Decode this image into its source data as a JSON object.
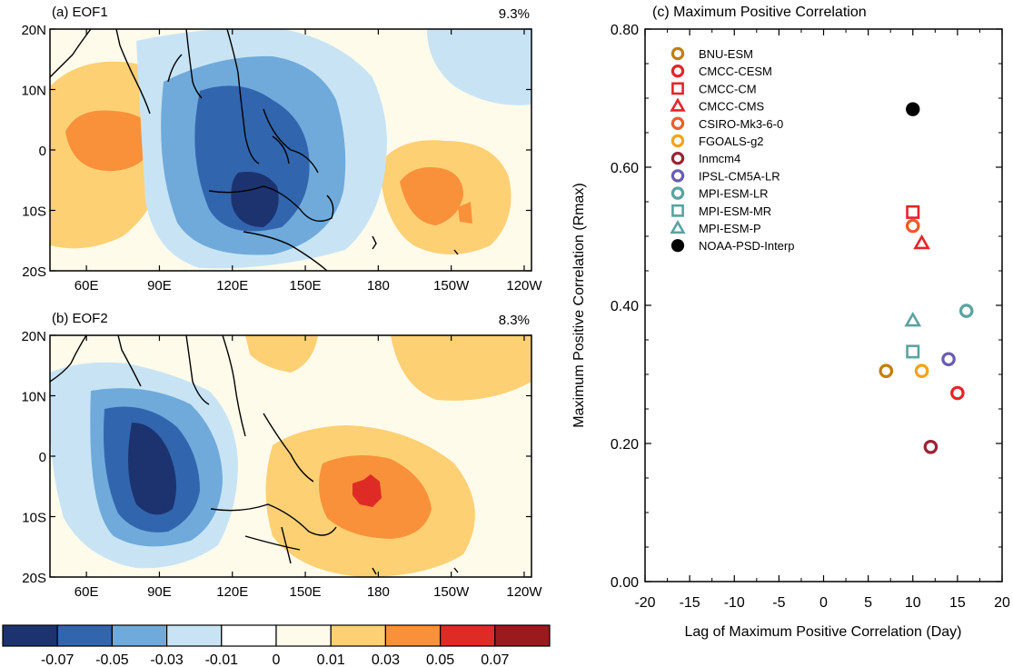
{
  "panels": {
    "a": {
      "title": "(a) EOF1",
      "variance": "9.3%"
    },
    "b": {
      "title": "(b) EOF2",
      "variance": "8.3%"
    }
  },
  "map_axes": {
    "lat_labels": [
      "20N",
      "10N",
      "0",
      "10S",
      "20S"
    ],
    "lon_labels": [
      "60E",
      "90E",
      "120E",
      "150E",
      "180",
      "150W",
      "120W"
    ]
  },
  "colorbar": {
    "labels": [
      "-0.07",
      "-0.05",
      "-0.03",
      "-0.01",
      "0",
      "0.01",
      "0.03",
      "0.05",
      "0.07"
    ],
    "colors": [
      "#1d3370",
      "#3166ae",
      "#6faadb",
      "#c8e4f4",
      "#ffffff",
      "#fffbeb",
      "#fed074",
      "#f9913a",
      "#df2b26",
      "#9b1a1d"
    ]
  },
  "chart_data": [
    {
      "type": "contour",
      "title": "(a) EOF1",
      "annotation": "9.3%",
      "lon_range": [
        45,
        243
      ],
      "lat_range": [
        -20,
        20
      ]
    },
    {
      "type": "contour",
      "title": "(b) EOF2",
      "annotation": "8.3%",
      "lon_range": [
        45,
        243
      ],
      "lat_range": [
        -20,
        20
      ]
    },
    {
      "type": "scatter",
      "title": "(c) Maximum Positive Correlation",
      "xlabel": "Lag of Maximum Positive Correlation (Day)",
      "ylabel": "Maximum Positive Correlation (Rmax)",
      "xlim": [
        -20,
        20
      ],
      "ylim": [
        0,
        0.8
      ],
      "xticks": [
        "-20",
        "-15",
        "-10",
        "-5",
        "0",
        "5",
        "10",
        "15",
        "20"
      ],
      "yticks": [
        "0.00",
        "0.20",
        "0.40",
        "0.60",
        "0.80"
      ],
      "legend_position": "top-left",
      "series": [
        {
          "name": "BNU-ESM",
          "marker": "circle-open",
          "color": "#c47d0e",
          "x": 7,
          "y": 0.305
        },
        {
          "name": "CMCC-CESM",
          "marker": "circle-open",
          "color": "#e8232a",
          "x": 15,
          "y": 0.273
        },
        {
          "name": "CMCC-CM",
          "marker": "square-open",
          "color": "#e8232a",
          "x": 10,
          "y": 0.535
        },
        {
          "name": "CMCC-CMS",
          "marker": "triangle-open",
          "color": "#e8232a",
          "x": 11,
          "y": 0.49
        },
        {
          "name": "CSIRO-Mk3-6-0",
          "marker": "circle-open",
          "color": "#f05a28",
          "x": 10,
          "y": 0.515
        },
        {
          "name": "FGOALS-g2",
          "marker": "circle-open",
          "color": "#f7a21b",
          "x": 11,
          "y": 0.305
        },
        {
          "name": "Inmcm4",
          "marker": "circle-open",
          "color": "#9b2335",
          "x": 12,
          "y": 0.195
        },
        {
          "name": "IPSL-CM5A-LR",
          "marker": "circle-open",
          "color": "#6a5bb5",
          "x": 14,
          "y": 0.322
        },
        {
          "name": "MPI-ESM-LR",
          "marker": "circle-open",
          "color": "#5aa3a0",
          "x": 16,
          "y": 0.392
        },
        {
          "name": "MPI-ESM-MR",
          "marker": "square-open",
          "color": "#5aa3a0",
          "x": 10,
          "y": 0.333
        },
        {
          "name": "MPI-ESM-P",
          "marker": "triangle-open",
          "color": "#5aa3a0",
          "x": 10,
          "y": 0.378
        },
        {
          "name": "NOAA-PSD-Interp",
          "marker": "circle-filled",
          "color": "#000000",
          "x": 10,
          "y": 0.684
        }
      ]
    }
  ]
}
